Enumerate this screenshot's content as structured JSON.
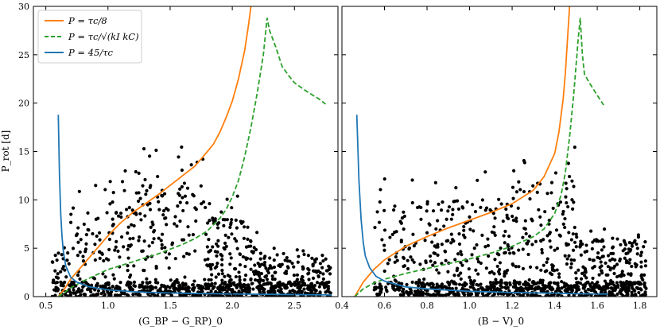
{
  "chart_data": [
    {
      "type": "scatter",
      "xlabel": "(G_BP − G_RP)_0",
      "ylabel": "P_rot [d]",
      "xlim": [
        0.4,
        2.85
      ],
      "ylim": [
        0,
        30
      ],
      "xticks": [
        "0.5",
        "1.0",
        "1.5",
        "2.0",
        "2.5"
      ],
      "yticks": [
        "0",
        "5",
        "10",
        "15",
        "20",
        "25",
        "30"
      ],
      "grid": false,
      "legend_position": "top-left",
      "series": [
        {
          "name": "P = τc/8",
          "style": "line",
          "color": "#ff7f0e",
          "x": [
            0.6,
            0.65,
            0.7,
            0.8,
            0.9,
            1.0,
            1.1,
            1.2,
            1.3,
            1.4,
            1.5,
            1.6,
            1.7,
            1.8,
            1.85,
            1.9,
            1.95,
            2.0,
            2.05,
            2.1,
            2.13,
            2.15
          ],
          "y": [
            0,
            0.8,
            1.8,
            3.3,
            4.8,
            6.3,
            7.6,
            8.7,
            9.6,
            10.5,
            11.5,
            12.5,
            13.5,
            15.0,
            15.8,
            17.0,
            18.5,
            20.2,
            22.5,
            25.5,
            28.0,
            30.0
          ]
        },
        {
          "name": "P = τc/√(kI kC)",
          "style": "dashed",
          "color": "#2ca02c",
          "x": [
            0.6,
            0.65,
            0.7,
            0.8,
            0.9,
            1.0,
            1.1,
            1.2,
            1.3,
            1.4,
            1.5,
            1.6,
            1.7,
            1.8,
            1.9,
            1.95,
            2.0,
            2.05,
            2.1,
            2.15,
            2.2,
            2.25,
            2.28,
            2.3,
            2.35,
            2.4,
            2.45,
            2.5,
            2.6,
            2.7,
            2.75
          ],
          "y": [
            0,
            0.4,
            0.9,
            1.6,
            2.2,
            2.8,
            3.2,
            3.6,
            4.0,
            4.4,
            4.9,
            5.4,
            6.0,
            6.8,
            8.1,
            9.0,
            10.3,
            12.0,
            14.5,
            17.5,
            21.0,
            25.0,
            28.8,
            27.5,
            25.8,
            23.8,
            22.9,
            22.1,
            21.2,
            20.4,
            19.9
          ]
        },
        {
          "name": "P = 45/τc",
          "style": "line",
          "color": "#1f77b4",
          "x": [
            0.6,
            0.61,
            0.62,
            0.63,
            0.64,
            0.66,
            0.7,
            0.75,
            0.85,
            1.0,
            1.2,
            1.4,
            1.6,
            1.8,
            2.0,
            2.2,
            2.4,
            2.6,
            2.8
          ],
          "y": [
            18.8,
            12.5,
            8.5,
            6.2,
            4.8,
            3.2,
            2.0,
            1.5,
            1.0,
            0.7,
            0.5,
            0.4,
            0.35,
            0.3,
            0.28,
            0.25,
            0.22,
            0.2,
            0.18
          ]
        }
      ],
      "scatter_note": "black points; approximately 1500 stars"
    },
    {
      "type": "scatter",
      "xlabel": "(B − V)_0",
      "ylabel": "",
      "xlim": [
        0.4,
        1.88
      ],
      "ylim": [
        0,
        30
      ],
      "xticks": [
        "0.4",
        "0.6",
        "0.8",
        "1.0",
        "1.2",
        "1.4",
        "1.6",
        "1.8"
      ],
      "yticks": [
        "0",
        "5",
        "10",
        "15",
        "20",
        "25",
        "30"
      ],
      "grid": false,
      "series": [
        {
          "name": "P = τc/8",
          "style": "line",
          "color": "#ff7f0e",
          "x": [
            0.46,
            0.5,
            0.55,
            0.6,
            0.7,
            0.8,
            0.9,
            1.0,
            1.1,
            1.2,
            1.3,
            1.35,
            1.4,
            1.42,
            1.44,
            1.45,
            1.46,
            1.47
          ],
          "y": [
            0,
            1.5,
            2.8,
            3.8,
            5.2,
            6.2,
            7.1,
            7.9,
            8.7,
            9.6,
            11.0,
            12.4,
            14.8,
            17.0,
            20.5,
            23.0,
            26.5,
            30.0
          ]
        },
        {
          "name": "P = τc/√(kI kC)",
          "style": "dashed",
          "color": "#2ca02c",
          "x": [
            0.46,
            0.5,
            0.55,
            0.6,
            0.7,
            0.8,
            0.9,
            1.0,
            1.1,
            1.2,
            1.3,
            1.35,
            1.4,
            1.43,
            1.45,
            1.47,
            1.49,
            1.51,
            1.52,
            1.53,
            1.54,
            1.56,
            1.6,
            1.63
          ],
          "y": [
            0,
            0.8,
            1.4,
            1.8,
            2.4,
            2.9,
            3.4,
            3.9,
            4.5,
            5.2,
            6.2,
            7.0,
            8.6,
            10.5,
            12.8,
            16.5,
            21.0,
            26.5,
            28.8,
            25.0,
            23.0,
            22.2,
            20.8,
            19.8
          ]
        },
        {
          "name": "P = 45/τc",
          "style": "line",
          "color": "#1f77b4",
          "x": [
            0.47,
            0.48,
            0.49,
            0.5,
            0.51,
            0.53,
            0.56,
            0.6,
            0.7,
            0.8,
            1.0,
            1.2,
            1.4,
            1.5,
            1.6,
            1.65
          ],
          "y": [
            18.8,
            12.0,
            8.0,
            5.6,
            4.2,
            3.0,
            2.1,
            1.6,
            1.0,
            0.8,
            0.55,
            0.42,
            0.35,
            0.3,
            0.28,
            0.27
          ]
        }
      ],
      "scatter_note": "black points; approximately 1500 stars"
    }
  ],
  "legend": {
    "items": [
      {
        "label": "P = τc/8",
        "color": "#ff7f0e",
        "style": "solid"
      },
      {
        "label": "P = τc/√(kI kC)",
        "color": "#2ca02c",
        "style": "dashed"
      },
      {
        "label": "P = 45/τc",
        "color": "#1f77b4",
        "style": "solid"
      }
    ]
  }
}
